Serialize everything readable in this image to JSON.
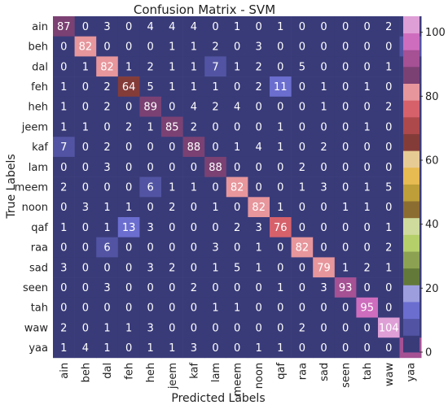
{
  "chart_data": {
    "type": "heatmap",
    "title": "Confusion Matrix - SVM",
    "xlabel": "Predicted Labels",
    "ylabel": "True Labels",
    "row_labels": [
      "ain",
      "beh",
      "dal",
      "feh",
      "heh",
      "jeem",
      "kaf",
      "lam",
      "meem",
      "noon",
      "qaf",
      "raa",
      "sad",
      "seen",
      "tah",
      "waw",
      "yaa"
    ],
    "col_labels": [
      "ain",
      "beh",
      "dal",
      "feh",
      "heh",
      "jeem",
      "kaf",
      "lam",
      "meem",
      "noon",
      "qaf",
      "raa",
      "sad",
      "seen",
      "tah",
      "waw",
      "yaa"
    ],
    "values": [
      [
        87,
        0,
        3,
        0,
        4,
        4,
        4,
        0,
        1,
        0,
        1,
        0,
        0,
        0,
        0,
        2,
        0
      ],
      [
        0,
        82,
        0,
        0,
        0,
        1,
        1,
        2,
        0,
        3,
        0,
        0,
        0,
        0,
        0,
        0,
        7
      ],
      [
        0,
        1,
        82,
        1,
        2,
        1,
        1,
        7,
        1,
        2,
        0,
        5,
        0,
        0,
        0,
        1,
        0
      ],
      [
        1,
        0,
        2,
        64,
        5,
        1,
        1,
        1,
        0,
        2,
        11,
        0,
        1,
        0,
        1,
        0,
        0
      ],
      [
        1,
        0,
        2,
        0,
        89,
        0,
        4,
        2,
        4,
        0,
        0,
        0,
        1,
        0,
        0,
        2,
        0
      ],
      [
        1,
        1,
        0,
        2,
        1,
        85,
        2,
        0,
        0,
        0,
        1,
        0,
        0,
        0,
        1,
        0,
        2
      ],
      [
        7,
        0,
        2,
        0,
        0,
        0,
        88,
        0,
        1,
        4,
        1,
        0,
        2,
        0,
        0,
        0,
        0
      ],
      [
        0,
        0,
        3,
        0,
        0,
        0,
        0,
        88,
        0,
        0,
        0,
        2,
        0,
        0,
        0,
        0,
        0
      ],
      [
        2,
        0,
        0,
        0,
        6,
        1,
        1,
        0,
        82,
        0,
        0,
        1,
        3,
        0,
        1,
        5,
        0
      ],
      [
        0,
        3,
        1,
        1,
        0,
        2,
        0,
        1,
        0,
        82,
        1,
        0,
        0,
        1,
        1,
        0,
        2
      ],
      [
        1,
        0,
        1,
        13,
        3,
        0,
        0,
        0,
        2,
        3,
        76,
        0,
        0,
        0,
        0,
        1,
        1
      ],
      [
        0,
        0,
        6,
        0,
        0,
        0,
        0,
        3,
        0,
        1,
        0,
        82,
        0,
        0,
        0,
        2,
        0
      ],
      [
        3,
        0,
        0,
        0,
        3,
        2,
        0,
        1,
        5,
        1,
        0,
        0,
        79,
        1,
        2,
        1,
        0
      ],
      [
        0,
        0,
        3,
        0,
        0,
        0,
        2,
        0,
        0,
        0,
        1,
        0,
        3,
        93,
        0,
        0,
        0
      ],
      [
        0,
        0,
        0,
        0,
        0,
        0,
        0,
        1,
        1,
        0,
        0,
        0,
        0,
        0,
        95,
        0,
        0
      ],
      [
        2,
        0,
        1,
        1,
        3,
        0,
        0,
        0,
        0,
        0,
        0,
        2,
        0,
        0,
        0,
        104,
        0
      ],
      [
        1,
        4,
        1,
        0,
        1,
        1,
        3,
        0,
        0,
        1,
        1,
        0,
        0,
        0,
        0,
        0,
        91
      ]
    ],
    "colorbar": {
      "range": [
        0,
        105
      ],
      "ticks": [
        0,
        20,
        40,
        60,
        80,
        100
      ],
      "colormap": "tab20b",
      "colors": [
        "#393b79",
        "#5254a3",
        "#6b6ecf",
        "#9c9ede",
        "#637939",
        "#8ca252",
        "#b5cf6b",
        "#cedb9c",
        "#8c6d31",
        "#bd9e39",
        "#e7ba52",
        "#e7cb94",
        "#843c39",
        "#ad494a",
        "#d6616b",
        "#e7969c",
        "#7b4173",
        "#a55194",
        "#ce6dbd",
        "#de9ed6"
      ]
    },
    "grid": false
  }
}
